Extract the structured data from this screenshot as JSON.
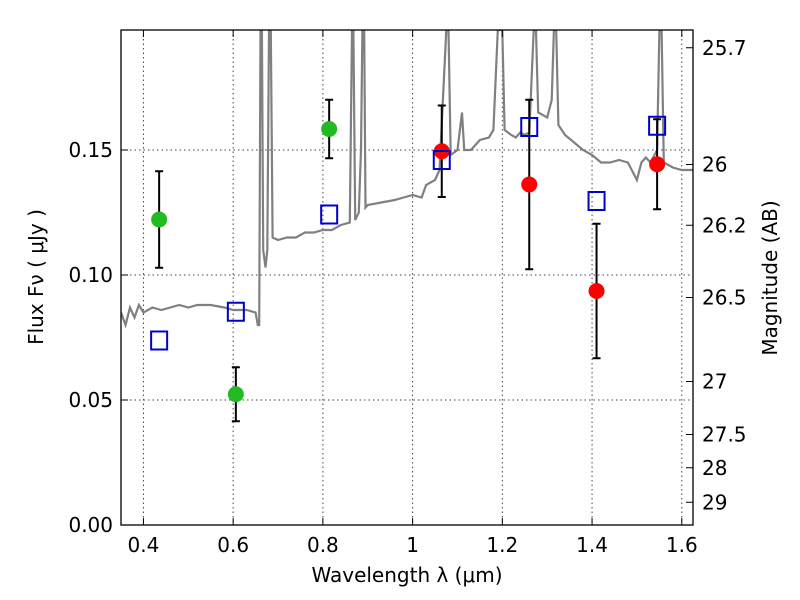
{
  "chart_data": {
    "type": "scatter",
    "xlabel": "Wavelength  λ (μm)",
    "ylabel": "Flux  Fν  ( μJy )",
    "ylabel_right": "Magnitude (AB)",
    "xlim": [
      0.35,
      1.625
    ],
    "ylim": [
      0.0,
      0.198
    ],
    "grid": true,
    "x_ticks": [
      0.4,
      0.6,
      0.8,
      1.0,
      1.2,
      1.4,
      1.6
    ],
    "x_tick_labels": [
      "0.4",
      "0.6",
      "0.8",
      "1",
      "1.2",
      "1.4",
      "1.6"
    ],
    "y_ticks": [
      0.0,
      0.05,
      0.1,
      0.15
    ],
    "y_tick_labels": [
      "0.00",
      "0.05",
      "0.10",
      "0.15"
    ],
    "right_ticks": [
      {
        "label": "25.7",
        "flux": 0.1909
      },
      {
        "label": "26",
        "flux": 0.1442
      },
      {
        "label": "26.2",
        "flux": 0.1199
      },
      {
        "label": "26.5",
        "flux": 0.091
      },
      {
        "label": "27",
        "flux": 0.0574
      },
      {
        "label": "27.5",
        "flux": 0.0362
      },
      {
        "label": "28",
        "flux": 0.0229
      },
      {
        "label": "29",
        "flux": 0.0091
      }
    ],
    "series": [
      {
        "marker": "circle",
        "color": "#22bb22",
        "points": [
          {
            "x": 0.435,
            "y": 0.1222,
            "err": 0.0193
          },
          {
            "x": 0.606,
            "y": 0.0523,
            "err": 0.0108
          },
          {
            "x": 0.814,
            "y": 0.1584,
            "err": 0.0117
          }
        ]
      },
      {
        "marker": "circle",
        "color": "#ff0000",
        "points": [
          {
            "x": 1.065,
            "y": 0.1495,
            "err": 0.0183
          },
          {
            "x": 1.26,
            "y": 0.1362,
            "err": 0.0339
          },
          {
            "x": 1.41,
            "y": 0.0936,
            "err": 0.0269
          },
          {
            "x": 1.545,
            "y": 0.1443,
            "err": 0.018
          }
        ]
      },
      {
        "marker": "square-open",
        "color": "#0000cc",
        "points": [
          {
            "x": 0.435,
            "y": 0.0738
          },
          {
            "x": 0.606,
            "y": 0.0853
          },
          {
            "x": 0.814,
            "y": 0.1242
          },
          {
            "x": 1.065,
            "y": 0.146
          },
          {
            "x": 1.26,
            "y": 0.1592
          },
          {
            "x": 1.41,
            "y": 0.1296
          },
          {
            "x": 1.545,
            "y": 0.1597
          }
        ]
      }
    ],
    "model_line": {
      "color": "#808080",
      "points": [
        [
          0.35,
          0.085
        ],
        [
          0.36,
          0.08
        ],
        [
          0.37,
          0.087
        ],
        [
          0.38,
          0.083
        ],
        [
          0.39,
          0.088
        ],
        [
          0.4,
          0.085
        ],
        [
          0.42,
          0.087
        ],
        [
          0.44,
          0.086
        ],
        [
          0.46,
          0.087
        ],
        [
          0.48,
          0.088
        ],
        [
          0.5,
          0.087
        ],
        [
          0.52,
          0.088
        ],
        [
          0.55,
          0.088
        ],
        [
          0.58,
          0.087
        ],
        [
          0.6,
          0.086
        ],
        [
          0.63,
          0.086
        ],
        [
          0.65,
          0.085
        ],
        [
          0.655,
          0.08
        ],
        [
          0.658,
          0.08
        ],
        [
          0.661,
          0.198
        ],
        [
          0.664,
          0.198
        ],
        [
          0.667,
          0.11
        ],
        [
          0.672,
          0.103
        ],
        [
          0.676,
          0.11
        ],
        [
          0.68,
          0.198
        ],
        [
          0.684,
          0.198
        ],
        [
          0.688,
          0.115
        ],
        [
          0.7,
          0.114
        ],
        [
          0.72,
          0.115
        ],
        [
          0.74,
          0.115
        ],
        [
          0.76,
          0.117
        ],
        [
          0.78,
          0.117
        ],
        [
          0.8,
          0.118
        ],
        [
          0.82,
          0.118
        ],
        [
          0.84,
          0.12
        ],
        [
          0.86,
          0.121
        ],
        [
          0.865,
          0.198
        ],
        [
          0.868,
          0.198
        ],
        [
          0.872,
          0.122
        ],
        [
          0.88,
          0.125
        ],
        [
          0.885,
          0.15
        ],
        [
          0.888,
          0.198
        ],
        [
          0.892,
          0.198
        ],
        [
          0.895,
          0.127
        ],
        [
          0.9,
          0.128
        ],
        [
          0.93,
          0.129
        ],
        [
          0.96,
          0.13
        ],
        [
          0.98,
          0.131
        ],
        [
          1.0,
          0.132
        ],
        [
          1.02,
          0.131
        ],
        [
          1.03,
          0.136
        ],
        [
          1.05,
          0.138
        ],
        [
          1.06,
          0.142
        ],
        [
          1.075,
          0.198
        ],
        [
          1.08,
          0.198
        ],
        [
          1.085,
          0.148
        ],
        [
          1.1,
          0.15
        ],
        [
          1.11,
          0.165
        ],
        [
          1.115,
          0.15
        ],
        [
          1.13,
          0.15
        ],
        [
          1.15,
          0.154
        ],
        [
          1.17,
          0.155
        ],
        [
          1.18,
          0.158
        ],
        [
          1.19,
          0.198
        ],
        [
          1.2,
          0.198
        ],
        [
          1.205,
          0.158
        ],
        [
          1.22,
          0.156
        ],
        [
          1.23,
          0.155
        ],
        [
          1.24,
          0.157
        ],
        [
          1.25,
          0.156
        ],
        [
          1.26,
          0.157
        ],
        [
          1.27,
          0.198
        ],
        [
          1.275,
          0.198
        ],
        [
          1.28,
          0.165
        ],
        [
          1.3,
          0.163
        ],
        [
          1.31,
          0.17
        ],
        [
          1.315,
          0.198
        ],
        [
          1.32,
          0.198
        ],
        [
          1.325,
          0.16
        ],
        [
          1.34,
          0.156
        ],
        [
          1.36,
          0.153
        ],
        [
          1.38,
          0.15
        ],
        [
          1.4,
          0.148
        ],
        [
          1.42,
          0.145
        ],
        [
          1.44,
          0.145
        ],
        [
          1.46,
          0.146
        ],
        [
          1.48,
          0.145
        ],
        [
          1.5,
          0.138
        ],
        [
          1.51,
          0.145
        ],
        [
          1.52,
          0.147
        ],
        [
          1.53,
          0.145
        ],
        [
          1.545,
          0.15
        ],
        [
          1.55,
          0.198
        ],
        [
          1.555,
          0.198
        ],
        [
          1.56,
          0.145
        ],
        [
          1.58,
          0.143
        ],
        [
          1.6,
          0.142
        ],
        [
          1.625,
          0.142
        ]
      ]
    }
  }
}
